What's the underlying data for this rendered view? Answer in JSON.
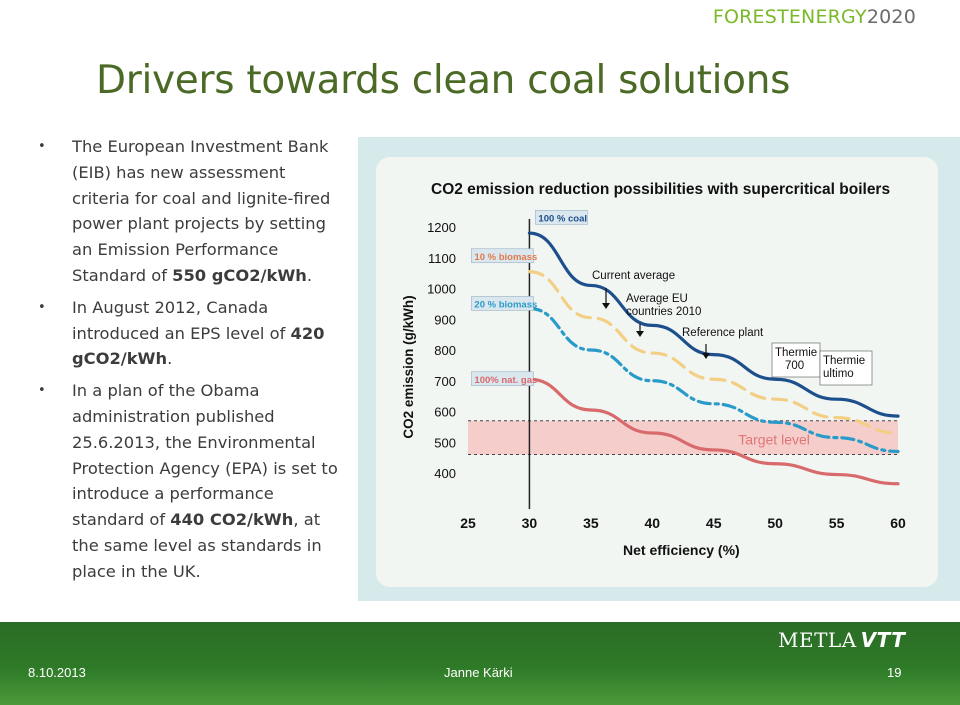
{
  "header": {
    "brand_part1": "FORESTENERGY",
    "brand_part2": "2020",
    "title": "Drivers towards clean coal solutions"
  },
  "bullets": [
    {
      "text_before": "The European Investment Bank (EIB) has new assessment criteria for coal and lignite-fired power plant projects by setting an Emission Performance Standard of ",
      "bold": "550 gCO2/kWh",
      "text_after": "."
    },
    {
      "text_before": "In August 2012, Canada introduced an EPS level of ",
      "bold": "420 gCO2/kWh",
      "text_after": "."
    },
    {
      "text_before": "In a plan of the Obama administration published 25.6.2013, the Environmental Protection Agency (EPA) is set to introduce a performance standard of ",
      "bold": "440 CO2/kWh",
      "text_after": ", at the same level as standards in place in the UK."
    }
  ],
  "chart_data": {
    "type": "line",
    "title": "CO2 emission reduction possibilities with supercritical boilers",
    "xlabel": "Net efficiency (%)",
    "ylabel": "CO2 emission (g/kWh)",
    "xlim": [
      25,
      60
    ],
    "ylim": [
      350,
      1250
    ],
    "x_ticks": [
      25,
      30,
      35,
      40,
      45,
      50,
      55,
      60
    ],
    "y_ticks": [
      400,
      500,
      600,
      700,
      800,
      900,
      1000,
      1100,
      1200
    ],
    "target_band": {
      "from": 460,
      "to": 570,
      "label": "Target level"
    },
    "series": [
      {
        "name": "100 % coal",
        "style": "solid",
        "color": "#1d4f8c",
        "x": [
          30,
          35,
          40,
          45,
          50,
          55,
          60
        ],
        "y": [
          1180,
          1010,
          880,
          785,
          705,
          640,
          585
        ]
      },
      {
        "name": "10 % biomass",
        "style": "dashed",
        "color": "#f3cf85",
        "x": [
          30,
          35,
          40,
          45,
          50,
          55,
          60
        ],
        "y": [
          1055,
          905,
          790,
          705,
          640,
          580,
          530
        ]
      },
      {
        "name": "20 % biomass",
        "style": "dashdot",
        "color": "#2a9bc9",
        "x": [
          30,
          35,
          40,
          45,
          50,
          55,
          60
        ],
        "y": [
          935,
          800,
          700,
          625,
          565,
          515,
          470
        ]
      },
      {
        "name": "100% nat. gas",
        "style": "solid",
        "color": "#d86a6c",
        "x": [
          30,
          35,
          40,
          45,
          50,
          55,
          60
        ],
        "y": [
          705,
          605,
          530,
          475,
          430,
          395,
          365
        ]
      }
    ],
    "annotations": [
      {
        "text": "Current average",
        "x": 36.5,
        "y": 1010
      },
      {
        "text": "Average EU countries 2010",
        "x": 38.5,
        "y": 930
      },
      {
        "text": "Reference plant",
        "x": 45.5,
        "y": 800
      },
      {
        "text": "Thermie 700",
        "x": 50.8,
        "y": 745
      },
      {
        "text": "Thermie ultimo",
        "x": 54.8,
        "y": 710
      }
    ]
  },
  "footer": {
    "logo_text": "METLA",
    "logo_text2": "VTT",
    "date": "8.10.2013",
    "author": "Janne Kärki",
    "page": "19"
  }
}
